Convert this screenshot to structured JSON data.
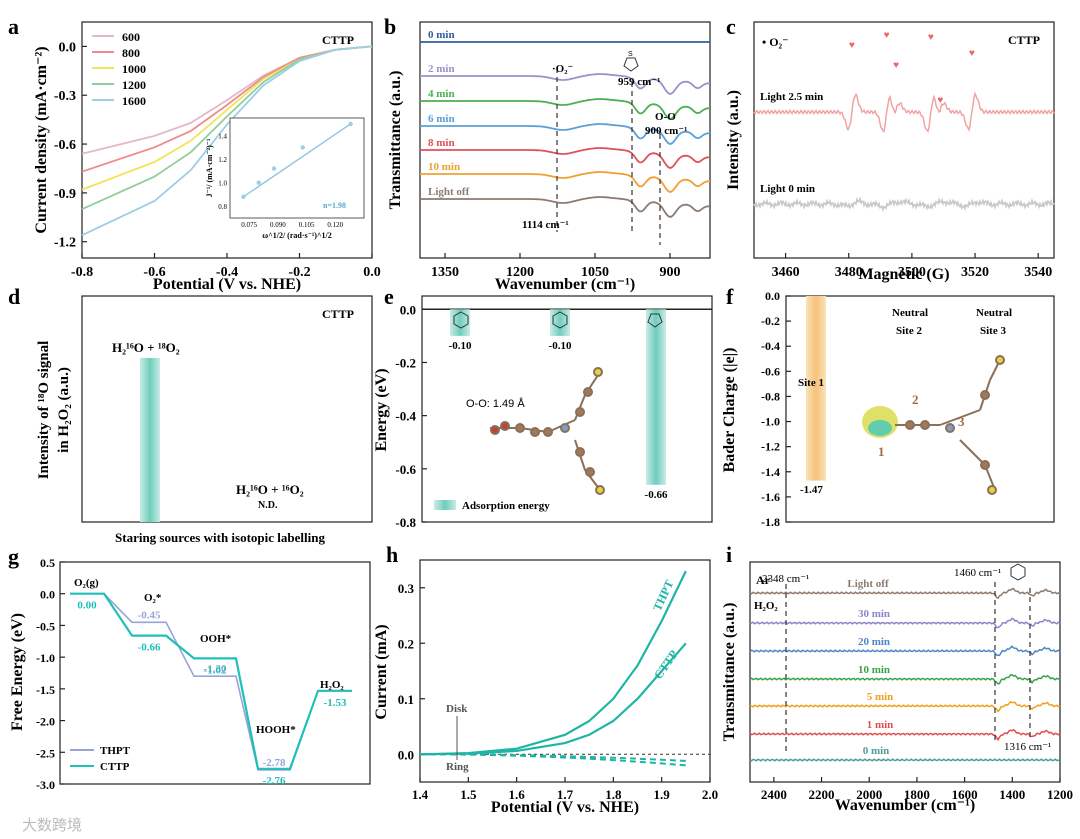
{
  "watermark": "大数跨境",
  "panels": {
    "a": {
      "letter": "a",
      "tag": "CTTP",
      "xlabel": "Potential (V vs. NHE)",
      "ylabel": "Current density (mA·cm⁻²)",
      "inset_ylabel": "J⁻¹/ (mA·cm⁻²)⁻¹",
      "inset_xlabel": "ω^1/2/ (rad·s⁻¹)^1/2",
      "inset_note": "n=1.98"
    },
    "b": {
      "letter": "b",
      "xlabel": "Wavenumber (cm⁻¹)",
      "ylabel": "Transmittance (a.u.)",
      "ann_o2": "·O₂⁻",
      "ann_959": "959 cm⁻¹",
      "ann_oo": "O-O",
      "ann_900": "900 cm⁻¹",
      "ann_1114": "1114 cm⁻¹"
    },
    "c": {
      "letter": "c",
      "tag": "CTTP",
      "species": "• O₂⁻",
      "xlabel": "Magnetic (G)",
      "ylabel": "Intensity (a.u.)",
      "trace1": "Light 2.5 min",
      "trace0": "Light 0 min"
    },
    "d": {
      "letter": "d",
      "tag": "CTTP",
      "ylabel1": "Intensity of ¹⁸O signal",
      "ylabel2": "in H₂O₂ (a.u.)",
      "xlabel": "Staring sources with isotopic labelling",
      "bar1": "H₂¹⁶O + ¹⁸O₂",
      "bar2": "H₂¹⁶O + ¹⁶O₂",
      "nd": "N.D."
    },
    "e": {
      "letter": "e",
      "ylabel": "Energy (eV)",
      "legend": "Adsorption energy",
      "oo": "O-O: 1.49 Å"
    },
    "f": {
      "letter": "f",
      "ylabel": "Bader Charge (|e|)",
      "site1": "Site 1",
      "site2a": "Neutral",
      "site2b": "Site 2",
      "site3a": "Neutral",
      "site3b": "Site 3",
      "value": "-1.47",
      "n1": "1",
      "n2": "2",
      "n3": "3"
    },
    "g": {
      "letter": "g",
      "ylabel": "Free Energy (eV)",
      "o2g": "O₂(g)",
      "o2s": "O₂*",
      "ooh": "OOH*",
      "hooh": "HOOH*",
      "h2o2": "H₂O₂"
    },
    "h": {
      "letter": "h",
      "xlabel": "Potential (V vs. NHE)",
      "ylabel": "Current (mA)",
      "disk": "Disk",
      "ring": "Ring",
      "thpt": "THPT",
      "cttp": "CTTP"
    },
    "i": {
      "letter": "i",
      "tag": "Ar",
      "xlabel": "Wavenumber (cm⁻¹)",
      "ylabel": "Transmittance (a.u.)",
      "ann_2348": "2348 cm⁻¹",
      "ann_h2o2": "H₂O₂",
      "ann_1460": "1460 cm⁻¹",
      "ann_1316": "1316 cm⁻¹"
    }
  },
  "chart_data": [
    {
      "panel": "a",
      "type": "line",
      "xlim": [
        -0.8,
        0.0
      ],
      "ylim": [
        -1.3,
        0.15
      ],
      "xticks": [
        "-0.8",
        "-0.6",
        "-0.4",
        "-0.2",
        "0.0"
      ],
      "yticks": [
        "0.0",
        "-0.3",
        "-0.6",
        "-0.9",
        "-1.2"
      ],
      "series": [
        {
          "name": "600",
          "color": "#e3b8c9",
          "x": [
            -0.8,
            -0.6,
            -0.5,
            -0.4,
            -0.3,
            -0.2,
            -0.1,
            0.0
          ],
          "y": [
            -0.66,
            -0.55,
            -0.47,
            -0.33,
            -0.18,
            -0.07,
            -0.02,
            0.0
          ]
        },
        {
          "name": "800",
          "color": "#f08a8a",
          "x": [
            -0.8,
            -0.6,
            -0.5,
            -0.4,
            -0.3,
            -0.2,
            -0.1,
            0.0
          ],
          "y": [
            -0.77,
            -0.62,
            -0.52,
            -0.36,
            -0.19,
            -0.07,
            -0.02,
            0.0
          ]
        },
        {
          "name": "1000",
          "color": "#f3e35a",
          "x": [
            -0.8,
            -0.6,
            -0.5,
            -0.4,
            -0.3,
            -0.2,
            -0.1,
            0.0
          ],
          "y": [
            -0.88,
            -0.71,
            -0.58,
            -0.39,
            -0.2,
            -0.08,
            -0.02,
            0.0
          ]
        },
        {
          "name": "1200",
          "color": "#8fcf9b",
          "x": [
            -0.8,
            -0.6,
            -0.5,
            -0.4,
            -0.3,
            -0.2,
            -0.1,
            0.0
          ],
          "y": [
            -1.0,
            -0.8,
            -0.65,
            -0.43,
            -0.22,
            -0.08,
            -0.02,
            0.0
          ]
        },
        {
          "name": "1600",
          "color": "#9fcde6",
          "x": [
            -0.8,
            -0.6,
            -0.5,
            -0.4,
            -0.3,
            -0.2,
            -0.1,
            0.0
          ],
          "y": [
            -1.16,
            -0.95,
            -0.76,
            -0.48,
            -0.24,
            -0.09,
            -0.02,
            0.0
          ]
        }
      ],
      "inset": {
        "xticks": [
          "0.075",
          "0.090",
          "0.105",
          "0.120"
        ],
        "yticks": [
          "0.8",
          "1.0",
          "1.2",
          "1.4"
        ],
        "x": [
          0.072,
          0.08,
          0.088,
          0.103,
          0.128
        ],
        "y": [
          0.88,
          1.0,
          1.12,
          1.3,
          1.5
        ],
        "xlim": [
          0.065,
          0.135
        ],
        "ylim": [
          0.7,
          1.55
        ]
      }
    },
    {
      "panel": "b",
      "type": "line",
      "xlim": [
        1400,
        820
      ],
      "xticks": [
        "1350",
        "1200",
        "1050",
        "900"
      ],
      "series": [
        {
          "name": "0 min",
          "color": "#2f5f9e",
          "offset": 0.0
        },
        {
          "name": "2 min",
          "color": "#9a93c9",
          "offset": 1.0
        },
        {
          "name": "4 min",
          "color": "#4caf50",
          "offset": 2.0
        },
        {
          "name": "6 min",
          "color": "#5aa0d8",
          "offset": 3.0
        },
        {
          "name": "8 min",
          "color": "#e0505a",
          "offset": 4.0
        },
        {
          "name": "10 min",
          "color": "#f0a030",
          "offset": 5.0
        },
        {
          "name": "Light off",
          "color": "#8c7b70",
          "offset": 6.0
        }
      ]
    },
    {
      "panel": "c",
      "type": "line",
      "xlim": [
        3450,
        3545
      ],
      "xticks": [
        "3460",
        "3480",
        "3500",
        "3520",
        "3540"
      ]
    },
    {
      "panel": "d",
      "type": "bar",
      "categories": [
        "H₂¹⁶O + ¹⁸O₂",
        "H₂¹⁶O + ¹⁶O₂"
      ],
      "values": [
        1.0,
        0
      ]
    },
    {
      "panel": "e",
      "type": "bar",
      "ylim": [
        -0.8,
        0.05
      ],
      "yticks": [
        "0.0",
        "-0.2",
        "-0.4",
        "-0.6",
        "-0.8"
      ],
      "values": [
        -0.1,
        -0.1,
        -0.66
      ],
      "labels": [
        "-0.10",
        "-0.10",
        "-0.66"
      ]
    },
    {
      "panel": "f",
      "type": "bar",
      "ylim": [
        -1.8,
        0.0
      ],
      "yticks": [
        "0.0",
        "-0.2",
        "-0.4",
        "-0.6",
        "-0.8",
        "-1.0",
        "-1.2",
        "-1.4",
        "-1.6",
        "-1.8"
      ],
      "values": [
        -1.47,
        0,
        0
      ]
    },
    {
      "panel": "g",
      "type": "line",
      "ylim": [
        -3.0,
        0.5
      ],
      "yticks": [
        "0.5",
        "0.0",
        "-0.5",
        "-1.0",
        "-1.5",
        "-2.0",
        "-2.5",
        "-3.0"
      ],
      "series": [
        {
          "name": "THPT",
          "color": "#9aa3d6",
          "values": [
            0.0,
            -0.45,
            -1.3,
            -2.78,
            -1.53
          ],
          "labels": [
            "",
            "-0.45",
            "-1.30",
            "-2.78",
            ""
          ]
        },
        {
          "name": "CTTP",
          "color": "#20c0b8",
          "values": [
            0.0,
            -0.66,
            -1.02,
            -2.76,
            -1.53
          ],
          "labels": [
            "0.00",
            "-0.66",
            "-1.02",
            "-2.76",
            "-1.53"
          ]
        }
      ]
    },
    {
      "panel": "h",
      "type": "line",
      "xlim": [
        1.4,
        2.0
      ],
      "ylim": [
        -0.05,
        0.35
      ],
      "xticks": [
        "1.4",
        "1.5",
        "1.6",
        "1.7",
        "1.8",
        "1.9",
        "2.0"
      ],
      "yticks": [
        "0.0",
        "0.1",
        "0.2",
        "0.3"
      ],
      "series": [
        {
          "name": "THPT",
          "color": "#1fb5a5",
          "x": [
            1.4,
            1.5,
            1.6,
            1.7,
            1.75,
            1.8,
            1.85,
            1.9,
            1.95
          ],
          "y": [
            0.0,
            0.002,
            0.01,
            0.035,
            0.06,
            0.1,
            0.16,
            0.24,
            0.33
          ]
        },
        {
          "name": "CTTP",
          "color": "#1fb5a5",
          "x": [
            1.4,
            1.5,
            1.6,
            1.7,
            1.75,
            1.8,
            1.85,
            1.9,
            1.95
          ],
          "y": [
            0.0,
            0.001,
            0.006,
            0.02,
            0.035,
            0.06,
            0.1,
            0.15,
            0.2
          ]
        }
      ]
    },
    {
      "panel": "i",
      "type": "line",
      "xlim": [
        2500,
        1200
      ],
      "xticks": [
        "2400",
        "2200",
        "2000",
        "1800",
        "1600",
        "1400",
        "1200"
      ],
      "series": [
        {
          "name": "Light off",
          "color": "#8c7b70"
        },
        {
          "name": "30 min",
          "color": "#8a86c8"
        },
        {
          "name": "20 min",
          "color": "#4f86c6"
        },
        {
          "name": "10 min",
          "color": "#3aa34a"
        },
        {
          "name": "5 min",
          "color": "#f0a020"
        },
        {
          "name": "1 min",
          "color": "#e05050"
        },
        {
          "name": "0 min",
          "color": "#4e9c9a"
        }
      ]
    }
  ]
}
